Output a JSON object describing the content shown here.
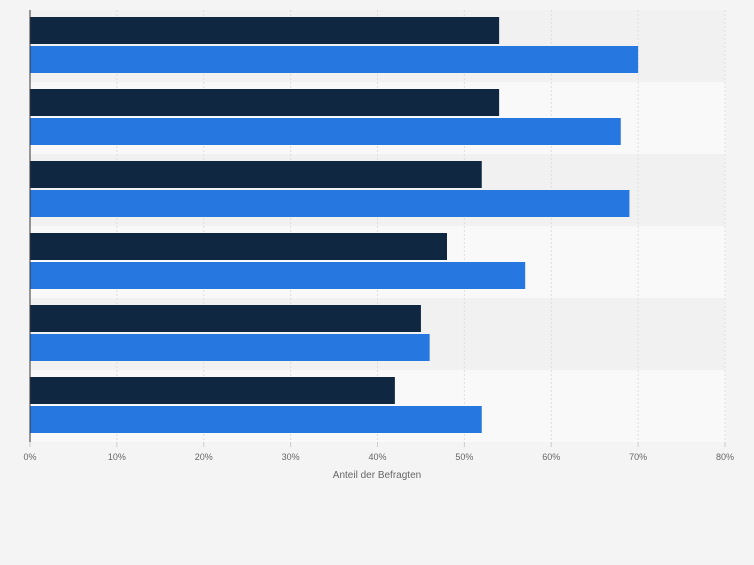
{
  "chart_data": {
    "type": "bar",
    "orientation": "horizontal",
    "categories": [
      "",
      "",
      "",
      "",
      "",
      ""
    ],
    "series": [
      {
        "values": [
          54,
          54,
          52,
          48,
          45,
          42
        ]
      },
      {
        "values": [
          70,
          68,
          69,
          57,
          46,
          52
        ]
      }
    ],
    "xlim": [
      0,
      80
    ],
    "xticks": [
      "0%",
      "10%",
      "20%",
      "30%",
      "40%",
      "50%",
      "60%",
      "70%",
      "80%"
    ],
    "xlabel": "Anteil der Befragten",
    "grid": true,
    "legend": "none"
  },
  "colors": {
    "series": [
      "#0f2741",
      "#2777e0"
    ],
    "band_light": "#f9f9f9",
    "band_dark": "#f1f1f1",
    "page": "#f4f4f4",
    "grid": "#dedede",
    "axis": "#333333",
    "tick_text": "#666666",
    "label_text": "#666666"
  }
}
